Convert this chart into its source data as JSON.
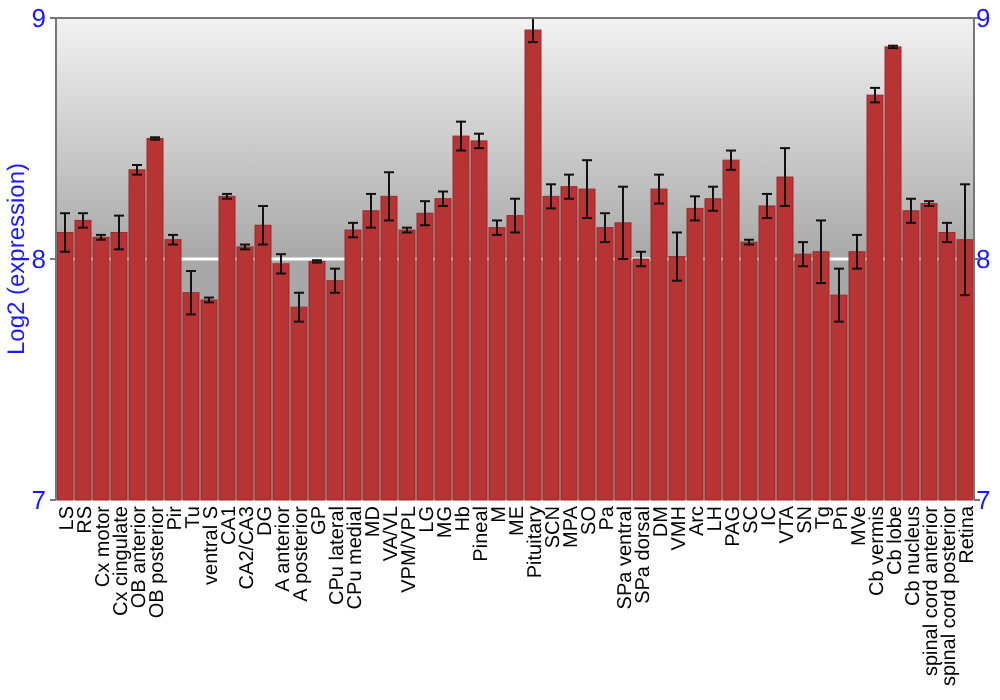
{
  "chart_data": {
    "type": "bar",
    "ylabel": "Log2 (expression)",
    "categories": [
      "LS",
      "RS",
      "Cx motor",
      "Cx cingulate",
      "OB anterior",
      "OB posterior",
      "Pir",
      "Tu",
      "ventral S",
      "CA1",
      "CA2/CA3",
      "DG",
      "A anterior",
      "A posterior",
      "GP",
      "CPu lateral",
      "CPu medial",
      "MD",
      "VA/VL",
      "VPM/VPL",
      "LG",
      "MG",
      "Hb",
      "Pineal",
      "M",
      "ME",
      "Pituitary",
      "SCN",
      "MPA",
      "SO",
      "Pa",
      "SPa ventral",
      "SPa dorsal",
      "DM",
      "VMH",
      "Arc",
      "LH",
      "PAG",
      "SC",
      "IC",
      "VTA",
      "SN",
      "Tg",
      "Pn",
      "MVe",
      "Cb vermis",
      "Cb lobe",
      "Cb nucleus",
      "spinal cord anterior",
      "spinal cord posterior",
      "Retina"
    ],
    "values": [
      8.11,
      8.16,
      8.09,
      8.11,
      8.37,
      8.5,
      8.08,
      7.86,
      7.83,
      8.26,
      8.05,
      8.14,
      7.98,
      7.8,
      7.99,
      7.91,
      8.12,
      8.2,
      8.26,
      8.12,
      8.19,
      8.25,
      8.51,
      8.49,
      8.13,
      8.18,
      8.95,
      8.26,
      8.3,
      8.29,
      8.13,
      8.15,
      8,
      8.29,
      8.01,
      8.21,
      8.25,
      8.41,
      8.07,
      8.22,
      8.34,
      8.02,
      8.03,
      7.85,
      8.03,
      8.68,
      8.88,
      8.2,
      8.23,
      8.11,
      8.08
    ],
    "errors": [
      0.08,
      0.03,
      0.01,
      0.07,
      0.02,
      0.005,
      0.02,
      0.09,
      0.01,
      0.01,
      0.01,
      0.08,
      0.04,
      0.06,
      0.005,
      0.05,
      0.03,
      0.07,
      0.1,
      0.01,
      0.05,
      0.03,
      0.06,
      0.03,
      0.03,
      0.07,
      0.05,
      0.05,
      0.05,
      0.12,
      0.06,
      0.15,
      0.03,
      0.06,
      0.1,
      0.05,
      0.05,
      0.04,
      0.01,
      0.05,
      0.12,
      0.05,
      0.13,
      0.11,
      0.07,
      0.03,
      0.005,
      0.05,
      0.01,
      0.04,
      0.23
    ],
    "color": "#b83434",
    "ylim": [
      7,
      9
    ],
    "yticks": [
      7,
      8,
      9
    ],
    "y2lim": [
      7,
      9
    ],
    "y2ticks": [
      7,
      8,
      9
    ],
    "ref_lines": [
      {
        "axis": "y",
        "value": 8,
        "color": "#ffffff"
      }
    ],
    "grid": false
  }
}
